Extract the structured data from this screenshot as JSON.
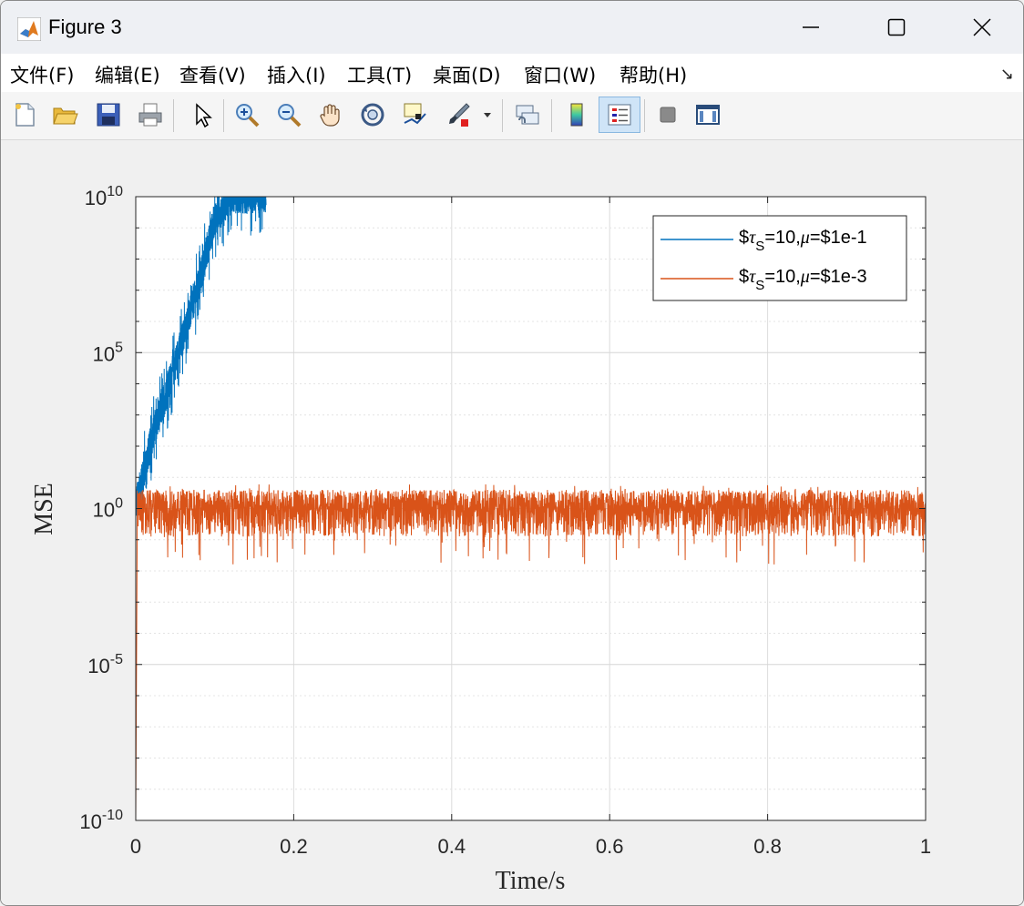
{
  "window": {
    "title": "Figure 3"
  },
  "menu": {
    "items": [
      {
        "label": "文件(F)"
      },
      {
        "label": "编辑(E)"
      },
      {
        "label": "查看(V)"
      },
      {
        "label": "插入(I)"
      },
      {
        "label": "工具(T)"
      },
      {
        "label": "桌面(D)"
      },
      {
        "label": "窗口(W)"
      },
      {
        "label": "帮助(H)"
      }
    ],
    "expand_icon": "↘"
  },
  "toolbar": {
    "icons": [
      "new-file-icon",
      "open-folder-icon",
      "save-icon",
      "print-icon",
      "select-arrow-icon",
      "zoom-in-icon",
      "zoom-out-icon",
      "pan-hand-icon",
      "rotate-3d-icon",
      "data-cursor-icon",
      "brush-icon",
      "link-plot-icon",
      "colorbar-icon",
      "legend-icon",
      "hide-plot-tools-icon",
      "show-plot-tools-icon"
    ]
  },
  "chart_data": {
    "type": "line",
    "xlabel": "Time/s",
    "ylabel": "MSE",
    "xlim": [
      0,
      1
    ],
    "ylim_log10": [
      -10,
      10
    ],
    "yscale": "log",
    "grid": true,
    "x_ticks": [
      "0",
      "0.2",
      "0.4",
      "0.6",
      "0.8",
      "1"
    ],
    "y_ticks": [
      {
        "base": "10",
        "exp": "10",
        "value": 10
      },
      {
        "base": "10",
        "exp": "5",
        "value": 5
      },
      {
        "base": "10",
        "exp": "0",
        "value": 0
      },
      {
        "base": "10",
        "exp": "-5",
        "value": -5
      },
      {
        "base": "10",
        "exp": "-10",
        "value": -10
      }
    ],
    "legend_position": "top-right",
    "series": [
      {
        "name": "$τS=10,μ=$1e-1",
        "legend_parts": {
          "pre": "$",
          "tau": "τ",
          "sub": "S",
          "mid": "=10,",
          "mu": "μ",
          "post": "=$1e-1"
        },
        "color": "#0072BD",
        "trend_log10": [
          [
            0,
            0.1
          ],
          [
            0.02,
            2.2
          ],
          [
            0.04,
            3.8
          ],
          [
            0.06,
            5.5
          ],
          [
            0.08,
            7.2
          ],
          [
            0.1,
            9.3
          ],
          [
            0.12,
            10
          ],
          [
            1,
            10
          ]
        ],
        "noise_log10": 0.8,
        "noise_until": 0.165
      },
      {
        "name": "$τS=10,μ=$1e-3",
        "legend_parts": {
          "pre": "$",
          "tau": "τ",
          "sub": "S",
          "mid": "=10,",
          "mu": "μ",
          "post": "=$1e-3"
        },
        "color": "#D95319",
        "trend_log10": [
          [
            0,
            -10
          ],
          [
            0.002,
            0
          ],
          [
            1,
            0
          ]
        ],
        "band_log10": [
          -0.9,
          0.6
        ],
        "noise_from": 0.002
      }
    ]
  }
}
